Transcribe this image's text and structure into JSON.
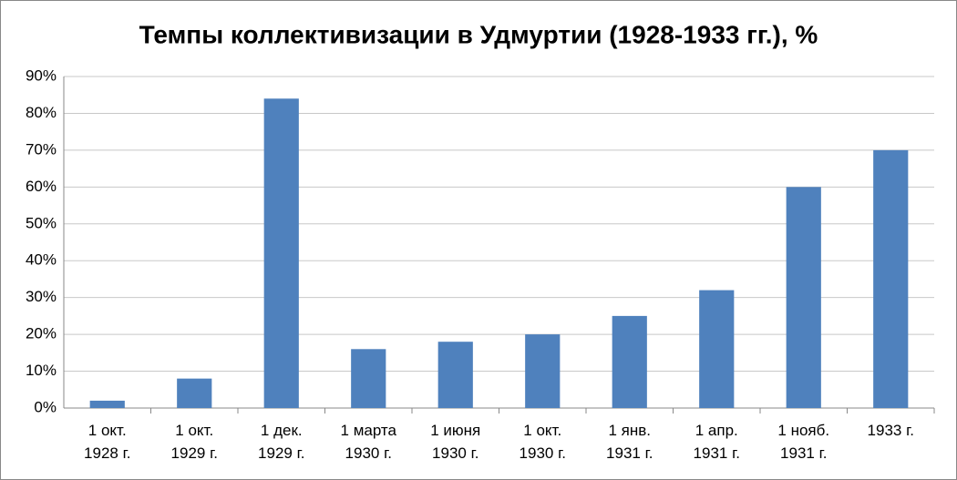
{
  "chart_data": {
    "type": "bar",
    "title": "Темпы коллективизации  в Удмуртии (1928-1933 гг.), %",
    "categories": [
      "1 окт. 1928 г.",
      "1 окт. 1929 г.",
      "1 дек. 1929 г.",
      "1 марта 1930 г.",
      "1 июня 1930 г.",
      "1 окт. 1930 г.",
      "1 янв. 1931 г.",
      "1 апр. 1931 г.",
      "1 нояб. 1931 г.",
      "1933 г."
    ],
    "values": [
      2,
      8,
      84,
      16,
      18,
      20,
      25,
      32,
      60,
      70
    ],
    "color": "#4f81bd",
    "ylim": [
      0,
      90
    ],
    "yticks": [
      {
        "value": 0,
        "label": "0%"
      },
      {
        "value": 10,
        "label": "10%"
      },
      {
        "value": 20,
        "label": "20%"
      },
      {
        "value": 30,
        "label": "30%"
      },
      {
        "value": 40,
        "label": "40%"
      },
      {
        "value": 50,
        "label": "50%"
      },
      {
        "value": 60,
        "label": "60%"
      },
      {
        "value": 70,
        "label": "70%"
      },
      {
        "value": 80,
        "label": "80%"
      },
      {
        "value": 90,
        "label": "90%"
      }
    ],
    "grid": true
  }
}
